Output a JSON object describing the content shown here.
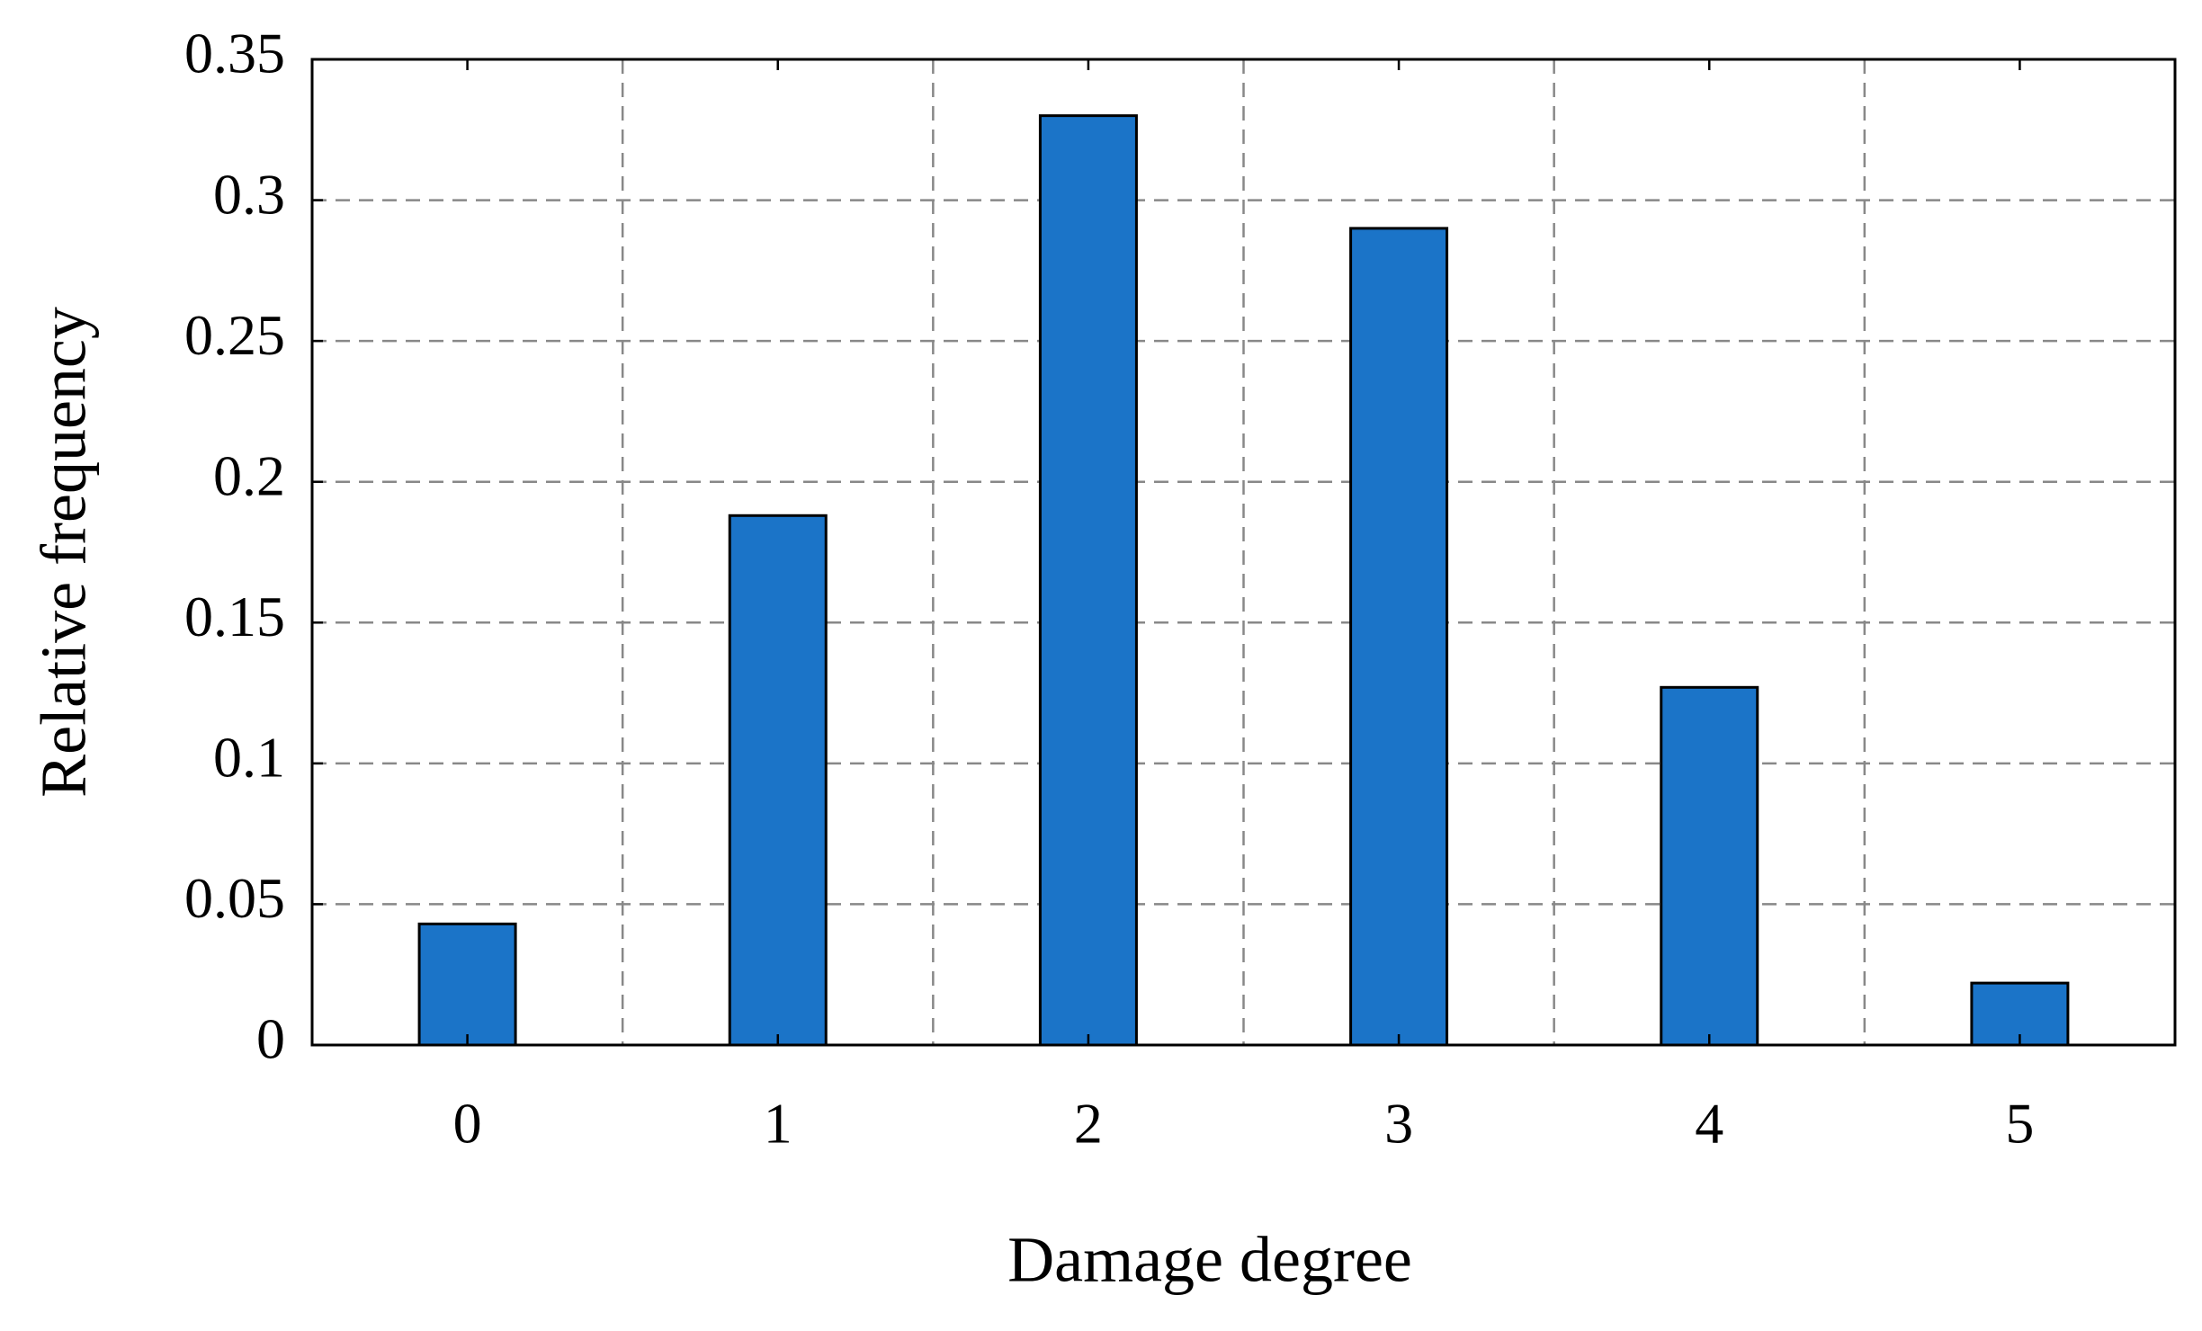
{
  "chart_data": {
    "type": "bar",
    "x_label": "Damage degree",
    "y_label": "Relative frequency",
    "categories": [
      "0",
      "1",
      "2",
      "3",
      "4",
      "5"
    ],
    "values": [
      0.043,
      0.188,
      0.33,
      0.29,
      0.127,
      0.022
    ],
    "color": "#1b74c8",
    "ylim": [
      0,
      0.35
    ],
    "yticks": [
      0,
      0.05,
      0.1,
      0.15,
      0.2,
      0.25,
      0.3,
      0.35
    ],
    "grid": true
  }
}
